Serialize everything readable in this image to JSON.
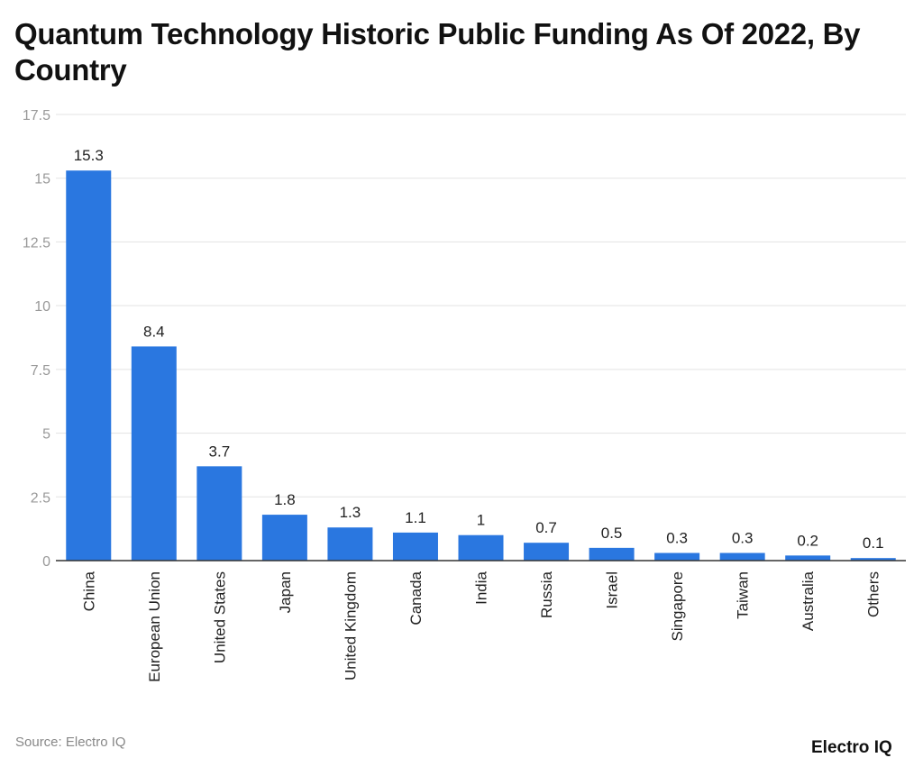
{
  "chart_data": {
    "type": "bar",
    "title": "Quantum Technology Historic Public Funding As Of 2022, By Country",
    "categories": [
      "China",
      "European Union",
      "United States",
      "Japan",
      "United Kingdom",
      "Canada",
      "India",
      "Russia",
      "Israel",
      "Singapore",
      "Taiwan",
      "Australia",
      "Others"
    ],
    "values": [
      15.3,
      8.4,
      3.7,
      1.8,
      1.3,
      1.1,
      1,
      0.7,
      0.5,
      0.3,
      0.3,
      0.2,
      0.1
    ],
    "value_labels": [
      "15.3",
      "8.4",
      "3.7",
      "1.8",
      "1.3",
      "1.1",
      "1",
      "0.7",
      "0.5",
      "0.3",
      "0.3",
      "0.2",
      "0.1"
    ],
    "xlabel": "",
    "ylabel": "",
    "ylim": [
      0,
      17.5
    ],
    "yticks": [
      "0",
      "2.5",
      "5",
      "7.5",
      "10",
      "12.5",
      "15",
      "17.5"
    ],
    "ytick_values": [
      0,
      2.5,
      5,
      7.5,
      10,
      12.5,
      15,
      17.5
    ],
    "grid": true,
    "bar_color": "#2a77e0"
  },
  "footer": {
    "source": "Source: Electro IQ",
    "logo": "Electro IQ"
  }
}
